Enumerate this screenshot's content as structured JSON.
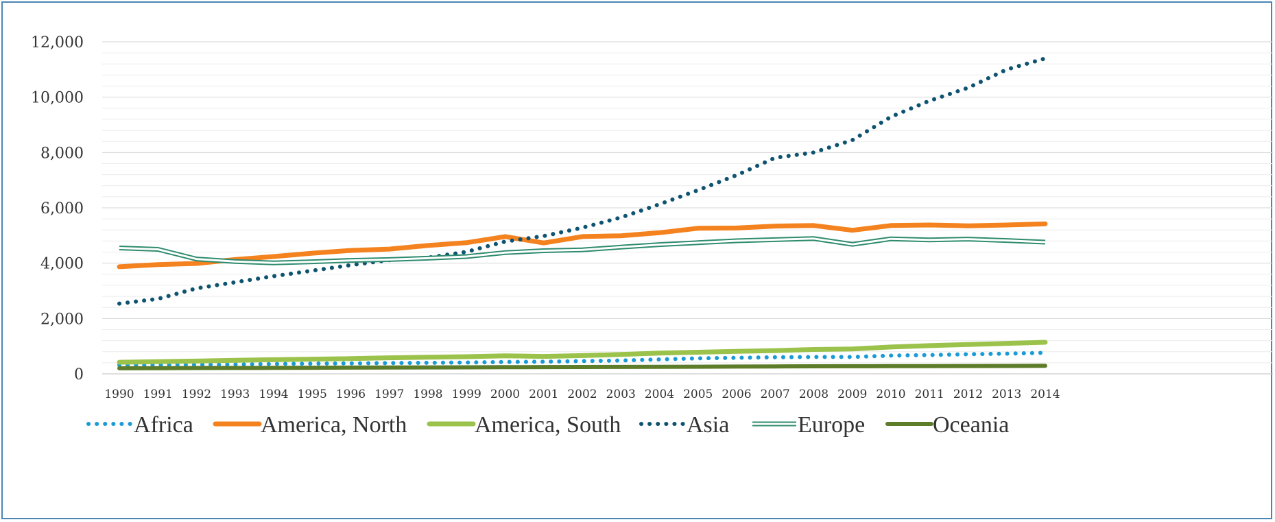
{
  "chart_data": {
    "type": "line",
    "title": "",
    "xlabel": "",
    "ylabel": "",
    "ylim": [
      0,
      12000
    ],
    "y_ticks": [
      0,
      2000,
      4000,
      6000,
      8000,
      10000,
      12000
    ],
    "y_tick_labels": [
      "0",
      "2,000",
      "4,000",
      "6,000",
      "8,000",
      "10,000",
      "12,000"
    ],
    "minor_gridlines": true,
    "legend_position": "bottom",
    "x": [
      "1990",
      "1991",
      "1992",
      "1993",
      "1994",
      "1995",
      "1996",
      "1997",
      "1998",
      "1999",
      "2000",
      "2001",
      "2002",
      "2003",
      "2004",
      "2005",
      "2006",
      "2007",
      "2008",
      "2009",
      "2010",
      "2011",
      "2012",
      "2013",
      "2014"
    ],
    "series": [
      {
        "name": "Africa",
        "color": "#1a9bd7",
        "style": "dotted",
        "values": [
          310,
          320,
          330,
          340,
          360,
          370,
          380,
          390,
          400,
          410,
          430,
          440,
          460,
          480,
          520,
          560,
          580,
          600,
          610,
          610,
          660,
          680,
          710,
          730,
          760
        ]
      },
      {
        "name": "America, North",
        "color": "#f4821f",
        "style": "solid",
        "values": [
          3870,
          3950,
          3990,
          4130,
          4240,
          4360,
          4460,
          4510,
          4640,
          4740,
          4960,
          4730,
          4960,
          4990,
          5100,
          5260,
          5270,
          5340,
          5360,
          5190,
          5360,
          5380,
          5350,
          5380,
          5420
        ]
      },
      {
        "name": "America, South",
        "color": "#9bc24b",
        "style": "solid",
        "values": [
          420,
          440,
          460,
          490,
          510,
          530,
          550,
          580,
          600,
          620,
          650,
          630,
          660,
          700,
          750,
          780,
          810,
          840,
          880,
          900,
          970,
          1020,
          1060,
          1100,
          1140
        ]
      },
      {
        "name": "Asia",
        "color": "#0e5470",
        "style": "dotted",
        "values": [
          2540,
          2710,
          3090,
          3310,
          3530,
          3730,
          3930,
          4110,
          4200,
          4410,
          4780,
          4980,
          5280,
          5650,
          6130,
          6640,
          7180,
          7810,
          8000,
          8450,
          9290,
          9870,
          10340,
          11000,
          11400
        ]
      },
      {
        "name": "Europe",
        "color": "#2e8b6e",
        "style": "double",
        "values": [
          4550,
          4500,
          4150,
          4060,
          4010,
          4050,
          4100,
          4130,
          4180,
          4240,
          4380,
          4450,
          4480,
          4580,
          4670,
          4740,
          4810,
          4850,
          4890,
          4680,
          4880,
          4840,
          4870,
          4820,
          4760
        ]
      },
      {
        "name": "Oceania",
        "color": "#5e7d2a",
        "style": "solid",
        "values": [
          200,
          205,
          210,
          212,
          215,
          220,
          225,
          228,
          232,
          235,
          240,
          245,
          248,
          250,
          255,
          258,
          262,
          268,
          272,
          275,
          278,
          280,
          282,
          285,
          290
        ]
      }
    ]
  }
}
